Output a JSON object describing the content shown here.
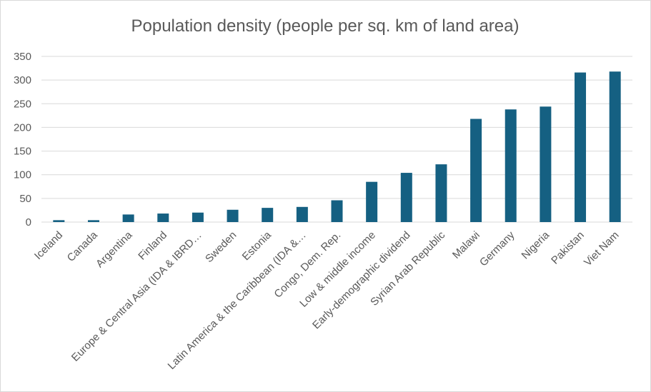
{
  "chart_data": {
    "type": "bar",
    "title": "Population density (people per sq. km of land area)",
    "xlabel": "",
    "ylabel": "",
    "ylim": [
      0,
      350
    ],
    "yticks": [
      0,
      50,
      100,
      150,
      200,
      250,
      300,
      350
    ],
    "grid": true,
    "legend": "none",
    "bar_color": "#156082",
    "categories": [
      "Iceland",
      "Canada",
      "Argentina",
      "Finland",
      "Europe & Central Asia (IDA & IBRD…",
      "Sweden",
      "Estonia",
      "Latin America & the Caribbean (IDA &…",
      "Congo, Dem. Rep.",
      "Low & middle income",
      "Early-demographic dividend",
      "Syrian Arab Republic",
      "Malawi",
      "Germany",
      "Nigeria",
      "Pakistan",
      "Viet Nam"
    ],
    "values": [
      4,
      4,
      16,
      18,
      20,
      26,
      30,
      32,
      46,
      85,
      104,
      122,
      218,
      238,
      244,
      316,
      318
    ]
  }
}
